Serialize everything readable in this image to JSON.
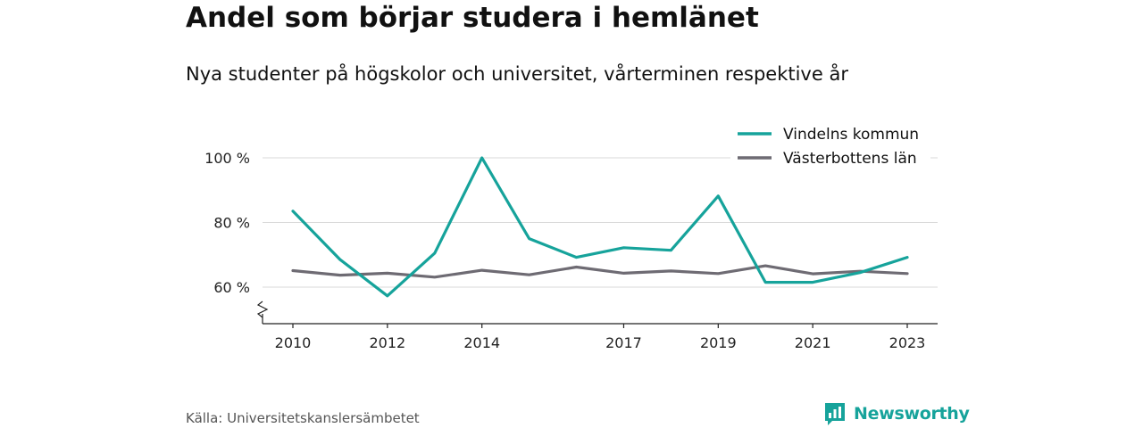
{
  "header": {
    "title": "Andel som börjar studera i hemlänet",
    "subtitle": "Nya studenter på högskolor och universitet, vårterminen respektive år"
  },
  "chart_data": {
    "type": "line",
    "x": [
      2010,
      2011,
      2012,
      2013,
      2014,
      2015,
      2016,
      2017,
      2018,
      2019,
      2020,
      2021,
      2022,
      2023
    ],
    "x_tick_labels": [
      "2010",
      "2012",
      "2014",
      "2017",
      "2019",
      "2021",
      "2023"
    ],
    "x_tick_values": [
      2010,
      2012,
      2014,
      2017,
      2019,
      2021,
      2023
    ],
    "y_tick_values": [
      60,
      80,
      100
    ],
    "y_tick_labels": [
      "60 %",
      "80 %",
      "100 %"
    ],
    "ylim": [
      48,
      105
    ],
    "broken_y_axis": true,
    "grid": true,
    "legend_position": "top-right",
    "series": [
      {
        "name": "Vindelns kommun",
        "color": "#16a39b",
        "values": [
          83.5,
          68.5,
          57.3,
          70.5,
          100,
          75,
          69.2,
          72.2,
          71.4,
          88.2,
          61.5,
          61.5,
          64.5,
          69.2
        ]
      },
      {
        "name": "Västerbottens län",
        "color": "#6e6b73",
        "values": [
          65.1,
          63.7,
          64.3,
          63.1,
          65.2,
          63.8,
          66.2,
          64.3,
          65.0,
          64.2,
          66.6,
          64.1,
          64.9,
          64.2
        ]
      }
    ]
  },
  "footer": {
    "source": "Källa: Universitetskanslersämbetet",
    "brand": "Newsworthy"
  }
}
